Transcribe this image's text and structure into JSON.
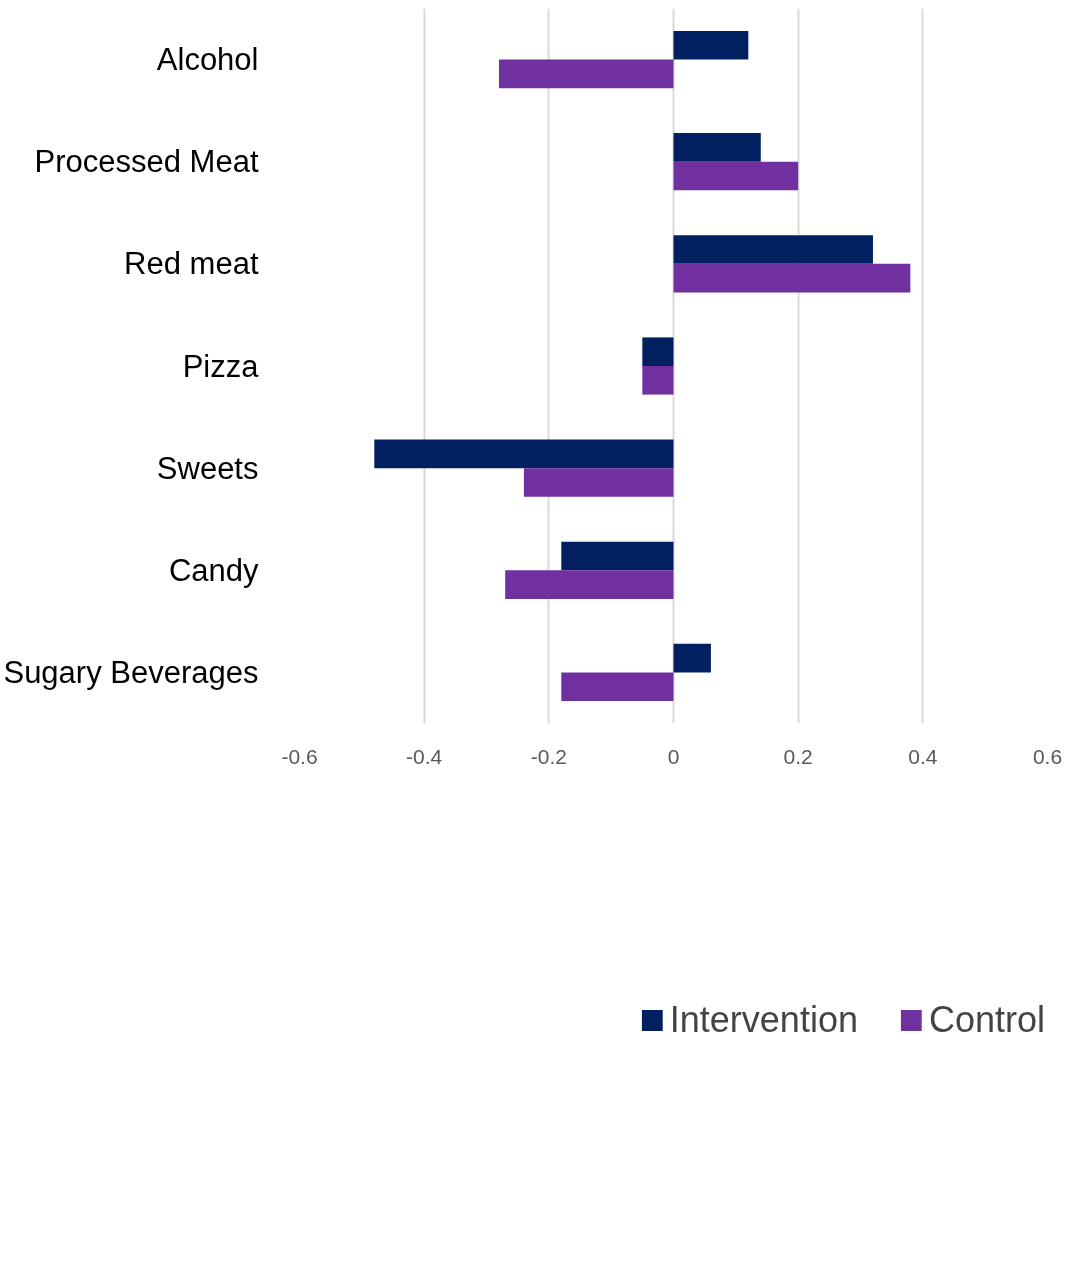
{
  "chart_data": {
    "type": "bar",
    "orientation": "horizontal",
    "categories": [
      "Alcohol",
      "Processed Meat",
      "Red meat",
      "Pizza",
      "Sweets",
      "Candy",
      "Sugary Beverages"
    ],
    "series": [
      {
        "name": "Intervention",
        "color": "#002060",
        "values": [
          0.12,
          0.14,
          0.32,
          -0.05,
          -0.48,
          -0.18,
          0.06
        ]
      },
      {
        "name": "Control",
        "color": "#7030a0",
        "values": [
          -0.28,
          0.2,
          0.38,
          -0.05,
          -0.24,
          -0.27,
          -0.18
        ]
      }
    ],
    "xlim": [
      -0.6,
      0.6
    ],
    "xticks": [
      -0.6,
      -0.4,
      -0.2,
      0,
      0.2,
      0.4,
      0.6
    ],
    "grid": "x",
    "legend": "bottom"
  }
}
